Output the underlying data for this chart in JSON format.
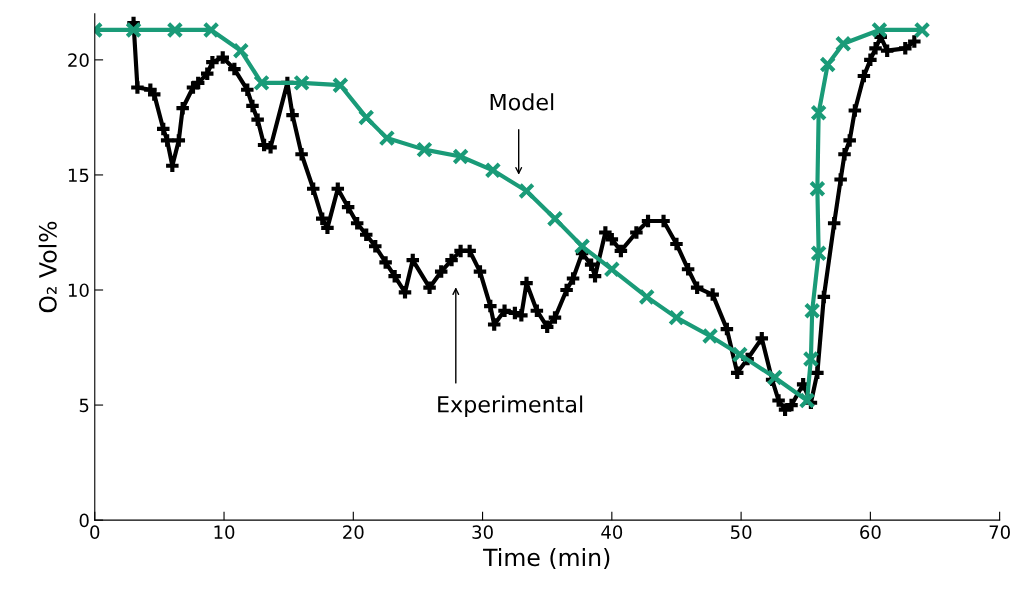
{
  "chart_data": {
    "type": "line",
    "xlabel": "Time (min)",
    "ylabel": "O₂ Vol%",
    "xlim": [
      0,
      70
    ],
    "xticks": [
      0,
      10,
      20,
      30,
      40,
      50,
      60,
      70
    ],
    "ylim": [
      0,
      22
    ],
    "yticks": [
      0,
      5,
      10,
      15,
      20
    ],
    "grid": false,
    "legend": false,
    "series": [
      {
        "color": "#000000",
        "marker": "plus",
        "x": [
          3,
          3.3,
          4.3,
          4.6,
          5.3,
          5.6,
          6,
          6.5,
          6.8,
          7.6,
          8,
          8.7,
          9.1,
          9.9,
          10.8,
          11.8,
          12.2,
          12.6,
          13.1,
          13.6,
          14.9,
          15.3,
          16,
          16.9,
          17.6,
          18,
          18.8,
          19.6,
          20.3,
          21,
          21.7,
          22.5,
          23.2,
          24,
          24.6,
          25.9,
          26.8,
          27.6,
          28.3,
          29,
          29.8,
          30.6,
          30.9,
          31.7,
          32.5,
          33,
          33.4,
          34.2,
          35,
          35.6,
          36.5,
          37,
          37.7,
          38.4,
          38.7,
          39.5,
          40,
          40.7,
          41.9,
          42.8,
          44,
          45,
          45.9,
          46.6,
          47.8,
          48.9,
          49.7,
          50.5,
          51.6,
          52.4,
          52.9,
          53.4,
          53.9,
          54.8,
          55.4,
          55.9,
          56.4,
          57.2,
          57.7,
          58,
          58.4,
          58.8,
          59.5,
          60,
          60.4,
          60.8,
          61.3,
          62.7,
          63.4
        ],
        "values": [
          21.6,
          18.8,
          18.7,
          18.5,
          17.0,
          16.5,
          15.4,
          16.5,
          17.9,
          18.8,
          19.0,
          19.4,
          19.9,
          20.1,
          19.6,
          18.7,
          18.0,
          17.4,
          16.3,
          16.2,
          19.0,
          17.6,
          15.9,
          14.4,
          13.1,
          12.7,
          14.4,
          13.6,
          12.9,
          12.4,
          11.9,
          11.2,
          10.6,
          9.9,
          11.3,
          10.1,
          10.8,
          11.3,
          11.7,
          11.7,
          10.8,
          9.3,
          8.5,
          9.1,
          9.0,
          8.9,
          10.3,
          9.1,
          8.4,
          8.8,
          10.0,
          10.5,
          11.6,
          11.1,
          10.6,
          12.5,
          12.2,
          11.7,
          12.5,
          13.0,
          13.0,
          12.0,
          10.9,
          10.1,
          9.8,
          8.3,
          6.4,
          7.0,
          7.9,
          6.1,
          5.2,
          4.8,
          5.0,
          5.9,
          5.1,
          6.4,
          9.7,
          12.9,
          14.8,
          15.9,
          16.5,
          17.8,
          19.3,
          20.0,
          20.5,
          21.0,
          20.4,
          20.5,
          20.8
        ]
      },
      {
        "color": "#1a9b78",
        "marker": "cross",
        "x": [
          0,
          3,
          6.2,
          9,
          11.3,
          12.9,
          16,
          19,
          21,
          22.6,
          25.5,
          28.3,
          30.8,
          33.4,
          35.6,
          37.7,
          40,
          42.7,
          45,
          47.6,
          49.9,
          52.6,
          55.1,
          55.4,
          55.5,
          56,
          55.9,
          56,
          56.7,
          57.9,
          60.7,
          64
        ],
        "values": [
          21.3,
          21.3,
          21.3,
          21.3,
          20.4,
          19.0,
          19.0,
          18.9,
          17.5,
          16.6,
          16.1,
          15.8,
          15.2,
          14.3,
          13.1,
          11.9,
          10.9,
          9.7,
          8.8,
          8.0,
          7.2,
          6.2,
          5.2,
          7.0,
          9.1,
          11.6,
          14.4,
          17.7,
          19.8,
          20.7,
          21.3,
          21.3
        ]
      }
    ],
    "annotations": [
      "Model",
      "Experimental"
    ]
  }
}
